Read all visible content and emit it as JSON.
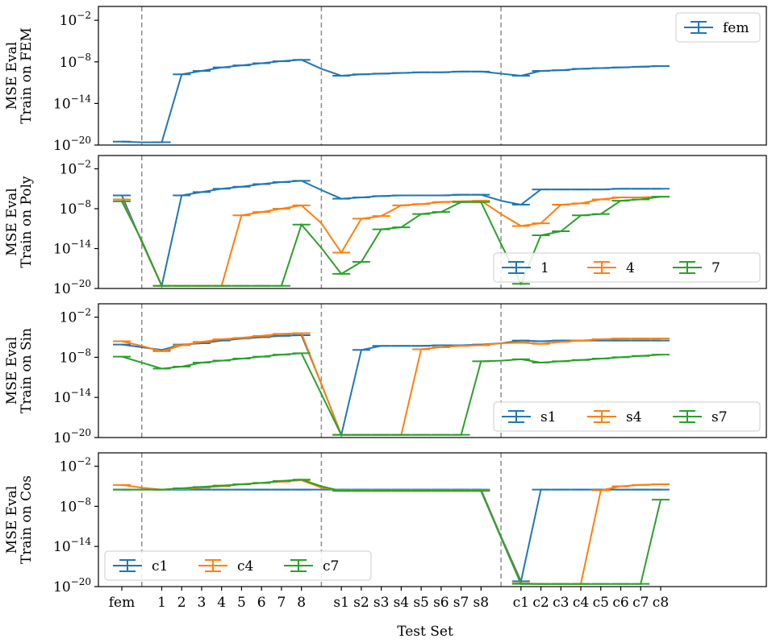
{
  "chart_data": {
    "type": "line",
    "xlabel": "Test Set",
    "x_categories": [
      "fem",
      "",
      "1",
      "2",
      "3",
      "4",
      "5",
      "6",
      "7",
      "8",
      "",
      "s1",
      "s2",
      "s3",
      "s4",
      "s5",
      "s6",
      "s7",
      "s8",
      "",
      "c1",
      "c2",
      "c3",
      "c4",
      "c5",
      "c6",
      "c7",
      "c8"
    ],
    "separators_after_index": [
      1,
      10,
      19
    ],
    "yscale": "log",
    "ylim_exponent": [
      -20,
      0
    ],
    "ytick_exponents": [
      -2,
      -8,
      -14,
      -20
    ],
    "ytick_labels": [
      "10",
      "10",
      "10",
      "10"
    ],
    "ytick_superscripts": [
      "−2",
      "−8",
      "−14",
      "−20"
    ],
    "colors": {
      "blue": "#1f77b4",
      "orange": "#ff7f0e",
      "green": "#2ca02c",
      "separator": "#8c8c8c"
    },
    "panels": [
      {
        "ylabel_line1": "MSE Eval",
        "ylabel_line2": "Train on FEM",
        "legend_position": "upper right",
        "legend_columns": 1,
        "series": [
          {
            "name": "fem",
            "color": "#1f77b4",
            "y": [
              -19.5,
              -19.6,
              -19.6,
              -9.8,
              -9.3,
              -8.8,
              -8.5,
              -8.2,
              -7.9,
              -7.7,
              -9.0,
              -10.0,
              -9.8,
              -9.7,
              -9.6,
              -9.5,
              -9.5,
              -9.4,
              -9.4,
              -9.7,
              -10.0,
              -9.3,
              -9.2,
              -9.0,
              -8.9,
              -8.8,
              -8.7,
              -8.6
            ]
          }
        ]
      },
      {
        "ylabel_line1": "MSE Eval",
        "ylabel_line2": "Train on Poly",
        "legend_position": "lower right",
        "legend_columns": 3,
        "series": [
          {
            "name": "1",
            "color": "#1f77b4",
            "y": [
              -6.0,
              -13.0,
              -19.6,
              -6.0,
              -5.5,
              -5.0,
              -4.7,
              -4.3,
              -4.0,
              -3.8,
              -5.2,
              -6.5,
              -6.3,
              -6.1,
              -6.0,
              -6.0,
              -6.0,
              -5.9,
              -5.9,
              -6.8,
              -7.4,
              -5.1,
              -5.1,
              -5.1,
              -5.1,
              -5.0,
              -5.0,
              -5.0
            ]
          },
          {
            "name": "4",
            "color": "#ff7f0e",
            "y": [
              -6.6,
              -12.9,
              -19.6,
              -19.6,
              -19.6,
              -19.6,
              -9.0,
              -8.5,
              -8.0,
              -7.5,
              -10.2,
              -14.6,
              -9.5,
              -9.1,
              -7.5,
              -7.3,
              -7.0,
              -6.9,
              -6.8,
              -8.8,
              -10.6,
              -10.2,
              -7.4,
              -7.2,
              -6.6,
              -6.3,
              -6.3,
              -6.2
            ]
          },
          {
            "name": "7",
            "color": "#2ca02c",
            "y": [
              -6.9,
              -12.8,
              -19.6,
              -19.6,
              -19.6,
              -19.6,
              -19.6,
              -19.6,
              -19.6,
              -10.4,
              -13.9,
              -17.8,
              -16.0,
              -11.1,
              -10.8,
              -8.8,
              -8.5,
              -7.0,
              -7.0,
              -13.3,
              -19.3,
              -12.0,
              -11.4,
              -9.0,
              -8.8,
              -6.8,
              -6.6,
              -6.2
            ]
          }
        ]
      },
      {
        "ylabel_line1": "MSE Eval",
        "ylabel_line2": "Train on Sin",
        "legend_position": "lower right",
        "legend_columns": 3,
        "series": [
          {
            "name": "s1",
            "color": "#1f77b4",
            "y": [
              -6.1,
              -6.5,
              -6.9,
              -6.1,
              -5.9,
              -5.5,
              -5.2,
              -5.0,
              -4.8,
              -4.7,
              -12.0,
              -19.6,
              -6.9,
              -6.3,
              -6.3,
              -6.3,
              -6.2,
              -6.2,
              -6.1,
              -5.9,
              -5.5,
              -5.6,
              -5.5,
              -5.5,
              -5.5,
              -5.5,
              -5.5,
              -5.5
            ]
          },
          {
            "name": "s4",
            "color": "#ff7f0e",
            "y": [
              -5.6,
              -6.3,
              -7.1,
              -6.2,
              -5.7,
              -5.3,
              -5.1,
              -4.8,
              -4.5,
              -4.4,
              -12.0,
              -19.6,
              -19.6,
              -19.6,
              -19.6,
              -6.8,
              -6.5,
              -6.3,
              -6.2,
              -5.9,
              -5.8,
              -6.0,
              -5.7,
              -5.5,
              -5.3,
              -5.2,
              -5.2,
              -5.2
            ]
          },
          {
            "name": "s7",
            "color": "#2ca02c",
            "y": [
              -7.9,
              -8.8,
              -9.7,
              -9.4,
              -8.8,
              -8.5,
              -8.2,
              -7.9,
              -7.6,
              -7.4,
              -13.5,
              -19.6,
              -19.6,
              -19.6,
              -19.6,
              -19.6,
              -19.6,
              -19.6,
              -8.6,
              -8.5,
              -8.3,
              -8.8,
              -8.6,
              -8.4,
              -8.2,
              -8.0,
              -7.8,
              -7.6
            ]
          }
        ]
      },
      {
        "ylabel_line1": "MSE Eval",
        "ylabel_line2": "Train on Cos",
        "legend_position": "lower left",
        "legend_columns": 3,
        "series": [
          {
            "name": "c1",
            "color": "#1f77b4",
            "y": [
              -5.5,
              -5.5,
              -5.5,
              -5.5,
              -5.5,
              -5.5,
              -5.5,
              -5.5,
              -5.5,
              -5.5,
              -5.5,
              -5.5,
              -5.5,
              -5.5,
              -5.5,
              -5.5,
              -5.5,
              -5.5,
              -5.5,
              -12.5,
              -19.2,
              -5.5,
              -5.5,
              -5.5,
              -5.5,
              -5.5,
              -5.5,
              -5.5
            ]
          },
          {
            "name": "c4",
            "color": "#ff7f0e",
            "y": [
              -4.8,
              -5.2,
              -5.5,
              -5.4,
              -5.2,
              -5.0,
              -4.7,
              -4.5,
              -4.3,
              -4.1,
              -5.2,
              -5.6,
              -5.6,
              -5.6,
              -5.6,
              -5.6,
              -5.6,
              -5.6,
              -5.6,
              -12.6,
              -19.5,
              -19.6,
              -19.6,
              -19.6,
              -5.6,
              -5.0,
              -4.8,
              -4.7
            ]
          },
          {
            "name": "c7",
            "color": "#2ca02c",
            "y": [
              -5.5,
              -5.5,
              -5.5,
              -5.3,
              -5.1,
              -4.9,
              -4.7,
              -4.5,
              -4.2,
              -4.0,
              -5.0,
              -5.7,
              -5.7,
              -5.7,
              -5.7,
              -5.7,
              -5.7,
              -5.7,
              -5.7,
              -12.7,
              -19.6,
              -19.6,
              -19.6,
              -19.6,
              -19.6,
              -19.6,
              -19.6,
              -7.0
            ]
          }
        ]
      }
    ]
  }
}
